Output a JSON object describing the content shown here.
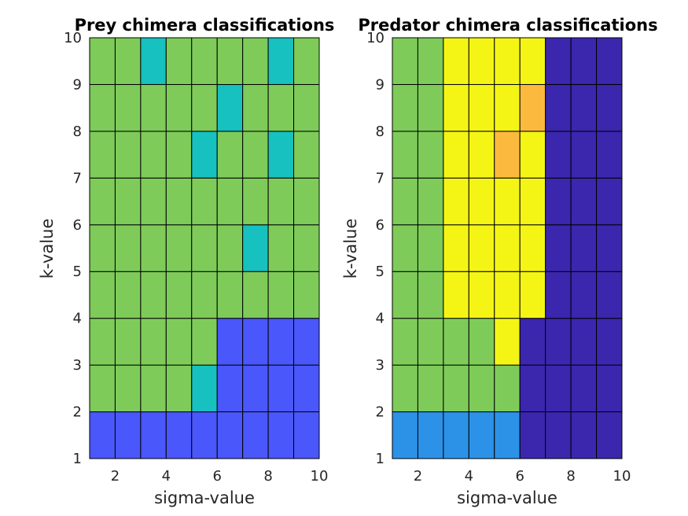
{
  "colors": {
    "1": "#4a57fb",
    "2": "#7ecb5a",
    "3": "#17c1bf",
    "4": "#f5f515",
    "5": "#fbba3d",
    "6": "#3b26ae",
    "7": "#2c92e8"
  },
  "chart_data": [
    {
      "type": "heatmap",
      "title": "Prey chimera classifications",
      "xlabel": "sigma-value",
      "ylabel": "k-value",
      "xlim": [
        1,
        10
      ],
      "ylim": [
        1,
        10
      ],
      "xticks": [
        2,
        4,
        6,
        8,
        10
      ],
      "yticks": [
        1,
        2,
        3,
        4,
        5,
        6,
        7,
        8,
        9,
        10
      ],
      "grid_note_rows_from_k1_to_k9": "each row lists cells for sigma intervals [1-2] ... [9-10]",
      "rows": [
        [
          1,
          1,
          1,
          1,
          1,
          1,
          1,
          1,
          1
        ],
        [
          2,
          2,
          2,
          2,
          3,
          1,
          1,
          1,
          1
        ],
        [
          2,
          2,
          2,
          2,
          2,
          1,
          1,
          1,
          1
        ],
        [
          2,
          2,
          2,
          2,
          2,
          2,
          2,
          2,
          2
        ],
        [
          2,
          2,
          2,
          2,
          2,
          2,
          3,
          2,
          2
        ],
        [
          2,
          2,
          2,
          2,
          2,
          2,
          2,
          2,
          2
        ],
        [
          2,
          2,
          2,
          2,
          3,
          2,
          2,
          3,
          2
        ],
        [
          2,
          2,
          2,
          2,
          2,
          3,
          2,
          2,
          2
        ],
        [
          2,
          2,
          3,
          2,
          2,
          2,
          2,
          3,
          2
        ]
      ]
    },
    {
      "type": "heatmap",
      "title": "Predator chimera classifications",
      "xlabel": "sigma-value",
      "ylabel": "k-value",
      "xlim": [
        1,
        10
      ],
      "ylim": [
        1,
        10
      ],
      "xticks": [
        2,
        4,
        6,
        8,
        10
      ],
      "yticks": [
        1,
        2,
        3,
        4,
        5,
        6,
        7,
        8,
        9,
        10
      ],
      "rows": [
        [
          7,
          7,
          7,
          7,
          7,
          6,
          6,
          6,
          6
        ],
        [
          2,
          2,
          2,
          2,
          2,
          6,
          6,
          6,
          6
        ],
        [
          2,
          2,
          2,
          2,
          4,
          6,
          6,
          6,
          6
        ],
        [
          2,
          2,
          4,
          4,
          4,
          4,
          6,
          6,
          6
        ],
        [
          2,
          2,
          4,
          4,
          4,
          4,
          6,
          6,
          6
        ],
        [
          2,
          2,
          4,
          4,
          4,
          4,
          6,
          6,
          6
        ],
        [
          2,
          2,
          4,
          4,
          5,
          4,
          6,
          6,
          6
        ],
        [
          2,
          2,
          4,
          4,
          4,
          5,
          6,
          6,
          6
        ],
        [
          2,
          2,
          4,
          4,
          4,
          4,
          6,
          6,
          6
        ]
      ]
    }
  ]
}
